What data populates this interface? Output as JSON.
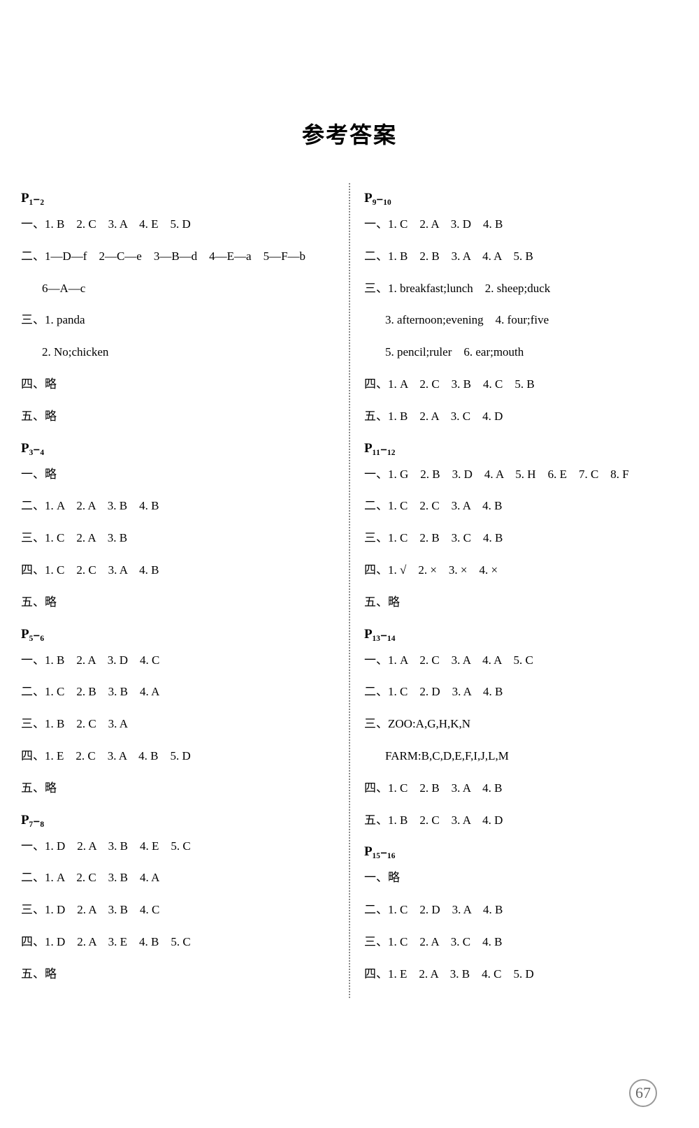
{
  "title": "参考答案",
  "pageNumber": "67",
  "left": {
    "p1_2": {
      "header": "P₁₋₂",
      "l1": "一、1. B　2. C　3. A　4. E　5. D",
      "l2": "二、1—D—f　2—C—e　3—B—d　4—E—a　5—F—b",
      "l2b": "6—A—c",
      "l3": "三、1. panda",
      "l3b": "2. No;chicken",
      "l4": "四、略",
      "l5": "五、略"
    },
    "p3_4": {
      "header": "P₃₋₄",
      "l1": "一、略",
      "l2": "二、1. A　2. A　3. B　4. B",
      "l3": "三、1. C　2. A　3. B",
      "l4": "四、1. C　2. C　3. A　4. B",
      "l5": "五、略"
    },
    "p5_6": {
      "header": "P₅₋₆",
      "l1": "一、1. B　2. A　3. D　4. C",
      "l2": "二、1. C　2. B　3. B　4. A",
      "l3": "三、1. B　2. C　3. A",
      "l4": "四、1. E　2. C　3. A　4. B　5. D",
      "l5": "五、略"
    },
    "p7_8": {
      "header": "P₇₋₈",
      "l1": "一、1. D　2. A　3. B　4. E　5. C",
      "l2": "二、1. A　2. C　3. B　4. A",
      "l3": "三、1. D　2. A　3. B　4. C",
      "l4": "四、1. D　2. A　3. E　4. B　5. C",
      "l5": "五、略"
    }
  },
  "right": {
    "p9_10": {
      "header": "P₉₋₁₀",
      "l1": "一、1. C　2. A　3. D　4. B",
      "l2": "二、1. B　2. B　3. A　4. A　5. B",
      "l3": "三、1. breakfast;lunch　2. sheep;duck",
      "l3b": "3. afternoon;evening　4. four;five",
      "l3c": "5. pencil;ruler　6. ear;mouth",
      "l4": "四、1. A　2. C　3. B　4. C　5. B",
      "l5": "五、1. B　2. A　3. C　4. D"
    },
    "p11_12": {
      "header": "P₁₁₋₁₂",
      "l1": "一、1. G　2. B　3. D　4. A　5. H　6. E　7. C　8. F",
      "l2": "二、1. C　2. C　3. A　4. B",
      "l3": "三、1. C　2. B　3. C　4. B",
      "l4": "四、1. √　2. ×　3. ×　4. ×",
      "l5": "五、略"
    },
    "p13_14": {
      "header": "P₁₃₋₁₄",
      "l1": "一、1. A　2. C　3. A　4. A　5. C",
      "l2": "二、1. C　2. D　3. A　4. B",
      "l3": "三、ZOO:A,G,H,K,N",
      "l3b": "FARM:B,C,D,E,F,I,J,L,M",
      "l4": "四、1. C　2. B　3. A　4. B",
      "l5": "五、1. B　2. C　3. A　4. D"
    },
    "p15_16": {
      "header": "P₁₅₋₁₆",
      "l1": "一、略",
      "l2": "二、1. C　2. D　3. A　4. B",
      "l3": "三、1. C　2. A　3. C　4. B",
      "l4": "四、1. E　2. A　3. B　4. C　5. D"
    }
  }
}
